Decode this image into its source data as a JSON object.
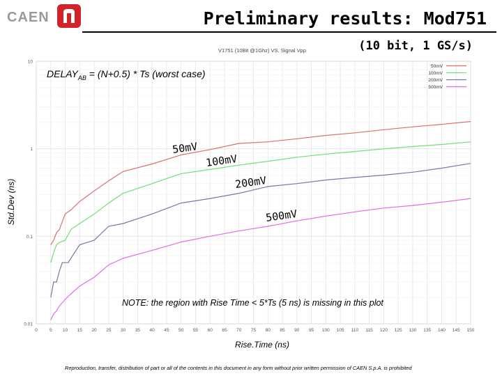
{
  "brand": {
    "name": "CAEN"
  },
  "header": {
    "title": "Preliminary results: Mod751",
    "subtitle": "(10 bit, 1 GS/s)"
  },
  "footer": {
    "text": "Reproduction, transfer, distribution of part or all of the contents in this document in any form without prior written permission of CAEN S.p.A. is prohibited"
  },
  "colors": {
    "s50": "#d87070",
    "s100": "#72de72",
    "s200": "#7478a8",
    "s500": "#e06ee4"
  },
  "chart_data": {
    "type": "line",
    "title": "V1751 (10Bit @1Ghz) VS. Signal Vpp",
    "xlabel": "Rise.Time (ns)",
    "ylabel": "Std.Dev (ns)",
    "yscale": "log",
    "xlim": [
      0,
      150
    ],
    "ylim": [
      0.01,
      10
    ],
    "xticks": [
      "0",
      "5",
      "10",
      "15",
      "20",
      "25",
      "30",
      "35",
      "40",
      "45",
      "50",
      "55",
      "60",
      "65",
      "70",
      "75",
      "80",
      "85",
      "90",
      "95",
      "100",
      "105",
      "110",
      "115",
      "120",
      "125",
      "130",
      "135",
      "140",
      "145",
      "150"
    ],
    "yticks": [
      "0.01",
      "0.1",
      "1",
      "10"
    ],
    "formula": {
      "main": "DELAY",
      "sub": "AB",
      "rest": " = (N+0.5) * Ts (worst case)"
    },
    "note": "NOTE: the region with Rise Time < 5*Ts (5 ns) is missing in this plot",
    "legend_position": "top-right",
    "series": [
      {
        "name": "50mV",
        "label": "50mV",
        "color_key": "s50",
        "x": [
          5,
          6,
          7,
          8,
          10,
          12,
          15,
          20,
          25,
          30,
          40,
          50,
          60,
          70,
          80,
          90,
          100,
          110,
          120,
          130,
          140,
          150
        ],
        "values": [
          0.08,
          0.09,
          0.11,
          0.12,
          0.18,
          0.2,
          0.25,
          0.33,
          0.43,
          0.55,
          0.67,
          0.85,
          0.98,
          1.15,
          1.2,
          1.3,
          1.42,
          1.52,
          1.65,
          1.78,
          1.9,
          2.05
        ]
      },
      {
        "name": "100mV",
        "label": "100mV",
        "color_key": "s100",
        "x": [
          5,
          6,
          7,
          8,
          10,
          12,
          15,
          20,
          25,
          30,
          40,
          50,
          60,
          70,
          80,
          90,
          100,
          110,
          120,
          130,
          140,
          150
        ],
        "values": [
          0.05,
          0.065,
          0.08,
          0.085,
          0.09,
          0.12,
          0.14,
          0.18,
          0.24,
          0.31,
          0.4,
          0.52,
          0.58,
          0.65,
          0.72,
          0.8,
          0.87,
          0.93,
          1.0,
          1.06,
          1.12,
          1.2
        ]
      },
      {
        "name": "200mV",
        "label": "200mV",
        "color_key": "s200",
        "x": [
          5,
          6,
          7,
          8,
          9,
          10,
          11,
          15,
          20,
          25,
          30,
          40,
          50,
          60,
          70,
          80,
          90,
          100,
          110,
          120,
          130,
          140,
          150
        ],
        "values": [
          0.02,
          0.03,
          0.03,
          0.04,
          0.05,
          0.05,
          0.05,
          0.08,
          0.09,
          0.13,
          0.14,
          0.18,
          0.24,
          0.27,
          0.31,
          0.37,
          0.4,
          0.44,
          0.47,
          0.5,
          0.54,
          0.6,
          0.68
        ]
      },
      {
        "name": "500mV",
        "label": "500mV",
        "color_key": "s500",
        "x": [
          5,
          6,
          7,
          8,
          10,
          12,
          15,
          20,
          25,
          30,
          40,
          50,
          60,
          70,
          80,
          90,
          100,
          110,
          120,
          130,
          140,
          150
        ],
        "values": [
          0.011,
          0.013,
          0.014,
          0.016,
          0.019,
          0.022,
          0.027,
          0.034,
          0.047,
          0.056,
          0.069,
          0.086,
          0.1,
          0.115,
          0.13,
          0.15,
          0.17,
          0.19,
          0.21,
          0.225,
          0.245,
          0.27
        ]
      }
    ]
  }
}
